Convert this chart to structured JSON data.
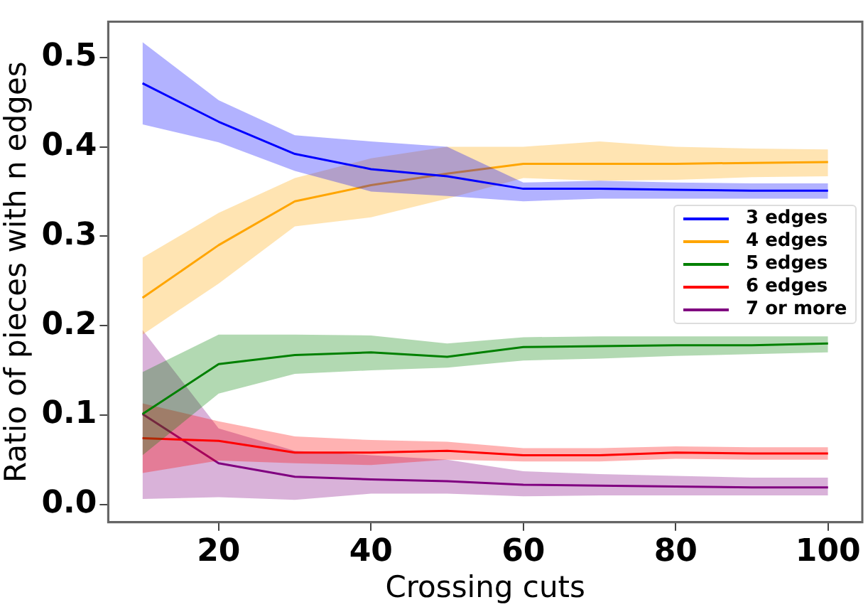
{
  "chart_data": {
    "type": "line",
    "xlabel": "Crossing cuts",
    "ylabel": "Ratio of pieces with n edges",
    "x": [
      10,
      20,
      30,
      40,
      50,
      60,
      70,
      80,
      90,
      100
    ],
    "xlim": [
      5.5,
      104.5
    ],
    "xticks": [
      20,
      40,
      60,
      80,
      100
    ],
    "ylim": [
      -0.02,
      0.54
    ],
    "yticks": [
      {
        "value": 0,
        "label": "0.0"
      },
      {
        "value": 0.1,
        "label": "0.1"
      },
      {
        "value": 0.2,
        "label": "0.2"
      },
      {
        "value": 0.3,
        "label": "0.3"
      },
      {
        "value": 0.4,
        "label": "0.4"
      },
      {
        "value": 0.5,
        "label": "0.5"
      }
    ],
    "grid": false,
    "legend": "right",
    "marker": "none",
    "line_style": "solid",
    "series": [
      {
        "name": "3 edges",
        "color": "#0000ff",
        "values": [
          0.471,
          0.428,
          0.392,
          0.375,
          0.367,
          0.353,
          0.353,
          0.352,
          0.351,
          0.351
        ],
        "lower": [
          0.425,
          0.405,
          0.373,
          0.35,
          0.345,
          0.339,
          0.342,
          0.342,
          0.342,
          0.342
        ],
        "upper": [
          0.517,
          0.452,
          0.413,
          0.406,
          0.4,
          0.36,
          0.362,
          0.36,
          0.359,
          0.359
        ]
      },
      {
        "name": "4 edges",
        "color": "#ffa500",
        "values": [
          0.231,
          0.29,
          0.339,
          0.357,
          0.37,
          0.381,
          0.381,
          0.381,
          0.382,
          0.383
        ],
        "lower": [
          0.19,
          0.247,
          0.311,
          0.321,
          0.342,
          0.365,
          0.362,
          0.363,
          0.366,
          0.367
        ],
        "upper": [
          0.276,
          0.326,
          0.365,
          0.387,
          0.4,
          0.4,
          0.406,
          0.4,
          0.398,
          0.397
        ]
      },
      {
        "name": "5 edges",
        "color": "#008000",
        "values": [
          0.101,
          0.157,
          0.167,
          0.17,
          0.165,
          0.176,
          0.177,
          0.178,
          0.178,
          0.18
        ],
        "lower": [
          0.055,
          0.124,
          0.146,
          0.15,
          0.153,
          0.161,
          0.163,
          0.166,
          0.168,
          0.17
        ],
        "upper": [
          0.148,
          0.19,
          0.19,
          0.189,
          0.18,
          0.187,
          0.188,
          0.188,
          0.188,
          0.188
        ]
      },
      {
        "name": "6 edges",
        "color": "#ff0000",
        "values": [
          0.074,
          0.071,
          0.058,
          0.058,
          0.06,
          0.055,
          0.055,
          0.058,
          0.057,
          0.057
        ],
        "lower": [
          0.035,
          0.049,
          0.046,
          0.044,
          0.05,
          0.048,
          0.048,
          0.051,
          0.05,
          0.05
        ],
        "upper": [
          0.113,
          0.093,
          0.076,
          0.072,
          0.07,
          0.063,
          0.063,
          0.065,
          0.064,
          0.064
        ]
      },
      {
        "name": "7 or more",
        "color": "#800080",
        "values": [
          0.101,
          0.046,
          0.031,
          0.028,
          0.026,
          0.022,
          0.021,
          0.02,
          0.019,
          0.019
        ],
        "lower": [
          0.006,
          0.008,
          0.005,
          0.012,
          0.012,
          0.009,
          0.01,
          0.01,
          0.01,
          0.01
        ],
        "upper": [
          0.195,
          0.085,
          0.06,
          0.055,
          0.05,
          0.037,
          0.034,
          0.032,
          0.03,
          0.03
        ]
      }
    ]
  }
}
